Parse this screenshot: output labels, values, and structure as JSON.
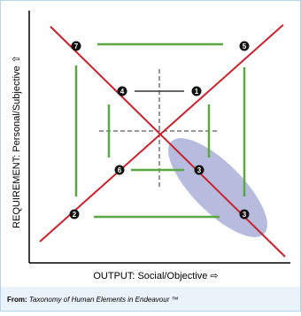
{
  "diagram": {
    "y_axis_label": "REQUIREMENT: Personal/Subjective ⇧",
    "x_axis_label": "OUTPUT:  Social/Objective  ⇨",
    "nodes": [
      {
        "label": "7"
      },
      {
        "label": "5"
      },
      {
        "label": "4"
      },
      {
        "label": "1"
      },
      {
        "label": "6"
      },
      {
        "label": "3"
      },
      {
        "label": "2"
      },
      {
        "label": "3"
      }
    ]
  },
  "footer": {
    "prefix": "From:",
    "source": "Taxonomy of Human Elements in Endeavour ™"
  }
}
